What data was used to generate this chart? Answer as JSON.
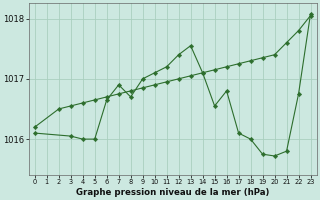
{
  "title": "Graphe pression niveau de la mer (hPa)",
  "background_color": "#cce8e0",
  "line_color": "#2d6e2d",
  "grid_color": "#aacfbf",
  "xlim": [
    -0.5,
    23.5
  ],
  "ylim": [
    1015.4,
    1018.25
  ],
  "yticks": [
    1016,
    1017,
    1018
  ],
  "xtick_labels": [
    "0",
    "1",
    "2",
    "3",
    "4",
    "5",
    "6",
    "7",
    "8",
    "9",
    "10",
    "11",
    "12",
    "13",
    "14",
    "15",
    "16",
    "17",
    "18",
    "19",
    "20",
    "21",
    "22",
    "23"
  ],
  "series1_x": [
    0,
    2,
    3,
    4,
    5,
    6,
    7,
    8,
    9,
    10,
    11,
    12,
    13,
    14,
    15,
    16,
    17,
    18,
    19,
    20,
    21,
    22,
    23
  ],
  "series1_y": [
    1016.2,
    1016.5,
    1016.55,
    1016.6,
    1016.65,
    1016.7,
    1016.75,
    1016.8,
    1016.85,
    1016.9,
    1016.95,
    1017.0,
    1017.05,
    1017.1,
    1017.15,
    1017.2,
    1017.25,
    1017.3,
    1017.35,
    1017.4,
    1017.6,
    1017.8,
    1018.05
  ],
  "series2_x": [
    0,
    3,
    4,
    5,
    6,
    7,
    8,
    9,
    10,
    11,
    12,
    13,
    14,
    15,
    16,
    17,
    18,
    19,
    20,
    21,
    22,
    23
  ],
  "series2_y": [
    1016.1,
    1016.05,
    1016.0,
    1016.0,
    1016.65,
    1016.9,
    1016.7,
    1017.0,
    1017.1,
    1017.2,
    1017.4,
    1017.55,
    1017.1,
    1016.55,
    1016.8,
    1016.1,
    1016.0,
    1015.75,
    1015.72,
    1015.8,
    1016.75,
    1018.08
  ]
}
